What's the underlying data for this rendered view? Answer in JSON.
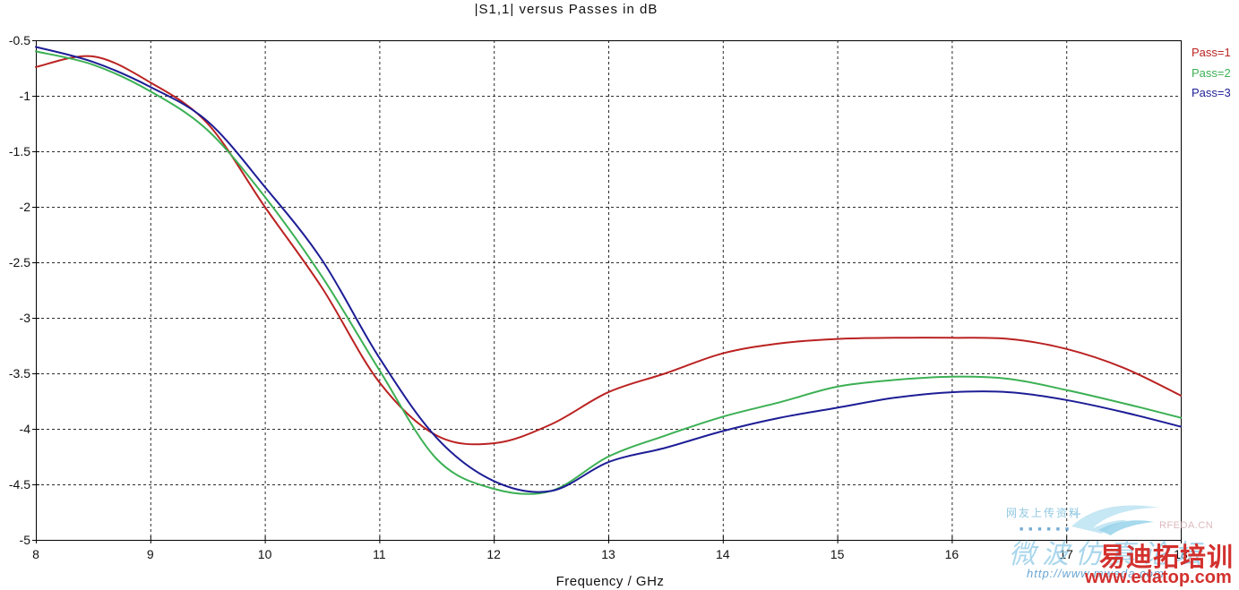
{
  "title": "|S1,1| versus Passes in dB",
  "colors": {
    "background": "#ffffff",
    "axis": "#000000",
    "grid": "#2b2b2b",
    "pass1": "#bb2222",
    "pass2": "#3cb054",
    "pass3": "#1d1d96",
    "watermark_red": "#d3312e",
    "watermark_blue": "#8cc8e6",
    "watermark_pink": "#dcb9bc"
  },
  "chart_data": {
    "type": "line",
    "title": "|S1,1| versus Passes in dB",
    "xlabel": "Frequency / GHz",
    "ylabel": "",
    "xlim": [
      8,
      18
    ],
    "ylim": [
      -5,
      -0.5
    ],
    "x_tick_labels": [
      "8",
      "9",
      "10",
      "11",
      "12",
      "13",
      "14",
      "15",
      "16",
      "17",
      "18"
    ],
    "y_tick_labels": [
      "-0.5",
      "-1",
      "-1.5",
      "-2",
      "-2.5",
      "-3",
      "-3.5",
      "-4",
      "-4.5",
      "-5"
    ],
    "grid": true,
    "grid_style": "dashed",
    "legend_position": "outside-top-right",
    "x": [
      8,
      8.5,
      9,
      9.5,
      10,
      10.5,
      11,
      11.5,
      12,
      12.5,
      13,
      13.5,
      14,
      14.5,
      15,
      15.5,
      16,
      16.5,
      17,
      17.5,
      18
    ],
    "series": [
      {
        "name": "Pass=1",
        "color": "#bb2222",
        "values": [
          -0.74,
          -0.645,
          -0.88,
          -1.25,
          -2.0,
          -2.73,
          -3.58,
          -4.06,
          -4.13,
          -3.96,
          -3.67,
          -3.5,
          -3.32,
          -3.23,
          -3.19,
          -3.18,
          -3.18,
          -3.19,
          -3.28,
          -3.45,
          -3.7
        ]
      },
      {
        "name": "Pass=2",
        "color": "#3cb054",
        "values": [
          -0.6,
          -0.72,
          -0.96,
          -1.31,
          -1.91,
          -2.63,
          -3.47,
          -4.27,
          -4.54,
          -4.56,
          -4.25,
          -4.06,
          -3.89,
          -3.76,
          -3.62,
          -3.56,
          -3.53,
          -3.55,
          -3.65,
          -3.77,
          -3.9
        ]
      },
      {
        "name": "Pass=3",
        "color": "#1d1d96",
        "values": [
          -0.56,
          -0.695,
          -0.92,
          -1.23,
          -1.82,
          -2.48,
          -3.36,
          -4.08,
          -4.47,
          -4.56,
          -4.3,
          -4.17,
          -4.02,
          -3.9,
          -3.81,
          -3.72,
          -3.67,
          -3.67,
          -3.74,
          -3.85,
          -3.98
        ]
      }
    ]
  },
  "icons": {
    "swoosh_logo": "bird-swoosh",
    "mini_blocks": "■ ■ ■ ■ ■ ■"
  },
  "watermarks": {
    "uploader_note": "网友上传资料",
    "rfeda": "RFEDA.CN",
    "forum_script": "微波仿真论坛",
    "forum_url": "http://www.mweda.com",
    "brand_cn": "易迪拓培训",
    "brand_url": "www.edatop.com"
  }
}
